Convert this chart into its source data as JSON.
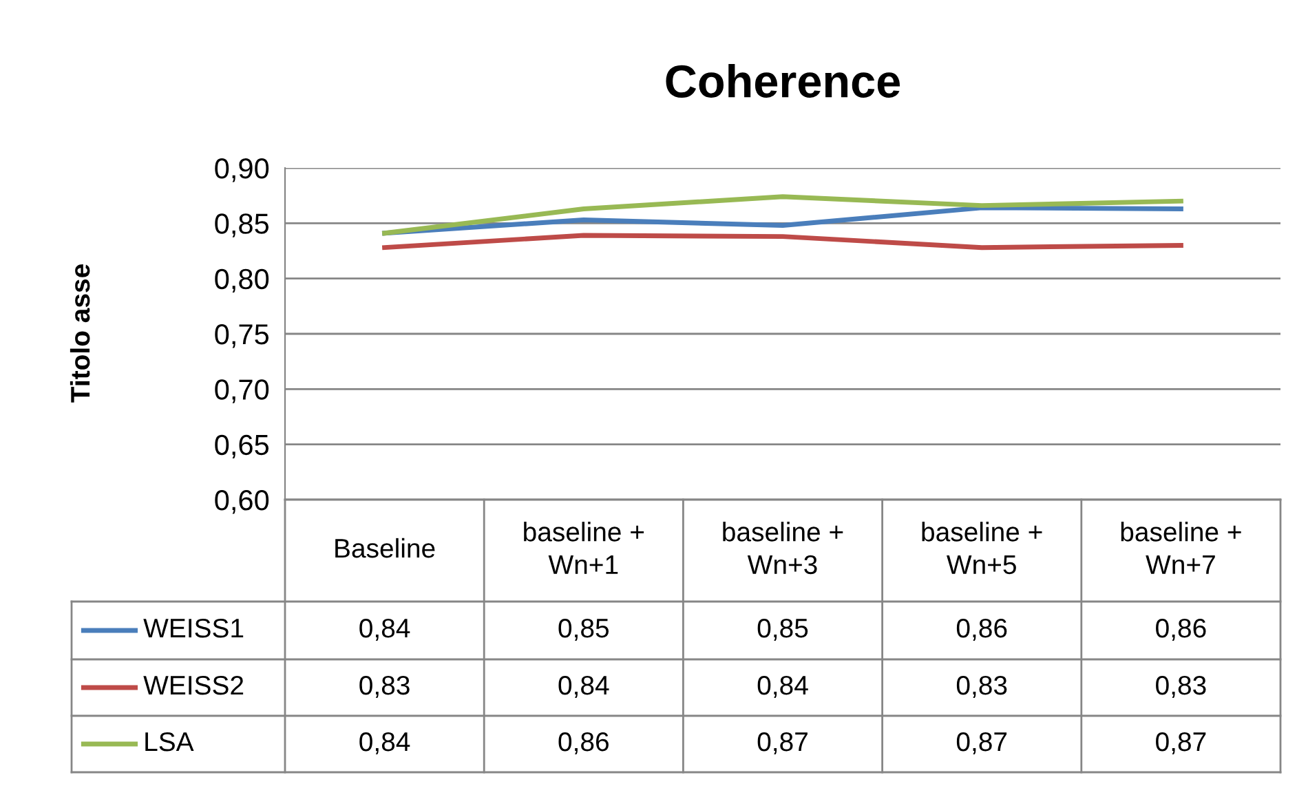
{
  "chart_data": {
    "type": "line",
    "title": "Coherence",
    "ylabel": "Titolo asse",
    "categories": [
      "Baseline",
      "baseline +\nWn+1",
      "baseline +\nWn+3",
      "baseline +\nWn+5",
      "baseline +\nWn+7"
    ],
    "series": [
      {
        "name": "WEISS1",
        "color": "#4a7ebb",
        "values": [
          0.841,
          0.853,
          0.848,
          0.864,
          0.863
        ],
        "value_labels": [
          "0,84",
          "0,85",
          "0,85",
          "0,86",
          "0,86"
        ]
      },
      {
        "name": "WEISS2",
        "color": "#be4b48",
        "values": [
          0.828,
          0.839,
          0.838,
          0.828,
          0.83
        ],
        "value_labels": [
          "0,83",
          "0,84",
          "0,84",
          "0,83",
          "0,83"
        ]
      },
      {
        "name": "LSA",
        "color": "#98b954",
        "values": [
          0.841,
          0.863,
          0.874,
          0.866,
          0.87
        ],
        "value_labels": [
          "0,84",
          "0,86",
          "0,87",
          "0,87",
          "0,87"
        ]
      }
    ],
    "ylim": [
      0.6,
      0.9
    ],
    "yticks": [
      {
        "value": 0.6,
        "label": "0,60"
      },
      {
        "value": 0.65,
        "label": "0,65"
      },
      {
        "value": 0.7,
        "label": "0,70"
      },
      {
        "value": 0.75,
        "label": "0,75"
      },
      {
        "value": 0.8,
        "label": "0,80"
      },
      {
        "value": 0.85,
        "label": "0,85"
      },
      {
        "value": 0.9,
        "label": "0,90"
      }
    ],
    "grid": "y",
    "legend": "bottom",
    "marker": "none",
    "line_style": "solid"
  }
}
